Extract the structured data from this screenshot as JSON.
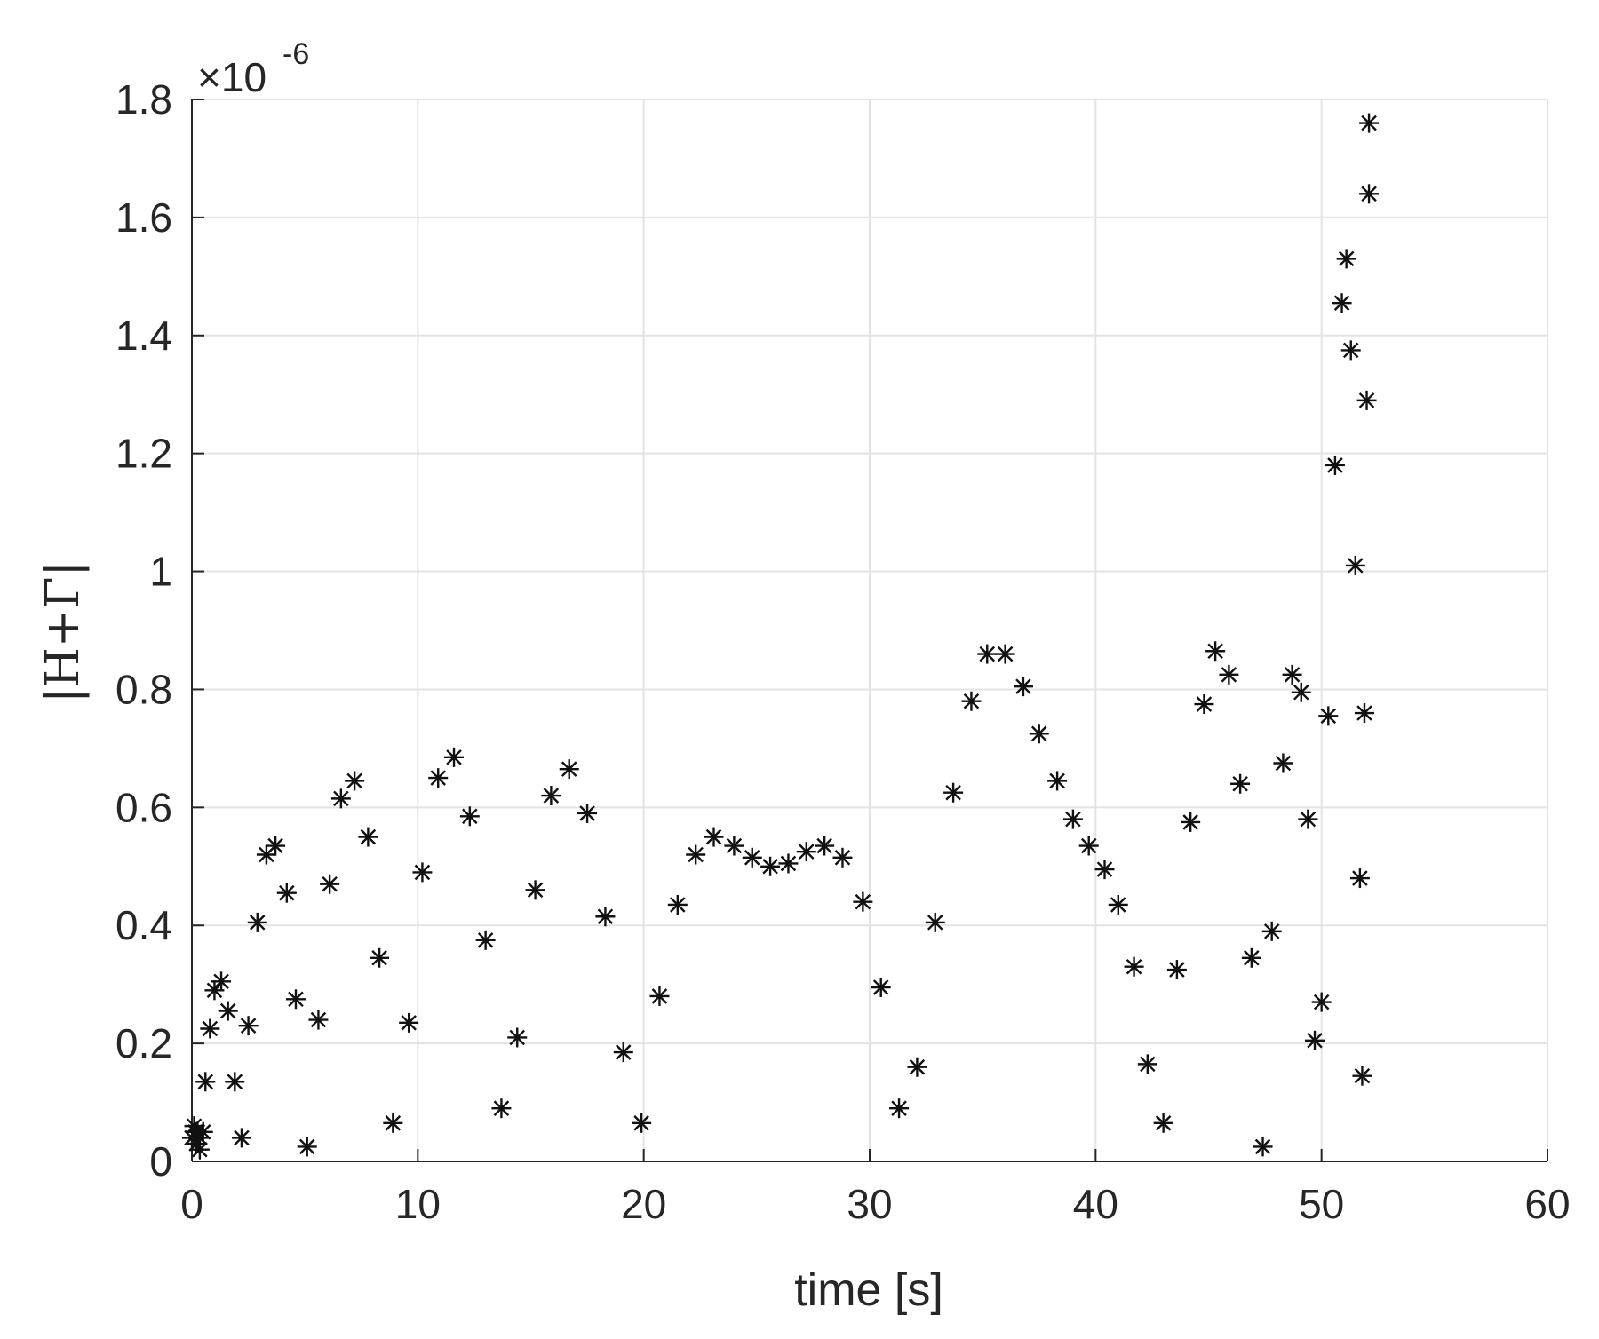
{
  "chart_data": {
    "type": "scatter",
    "marker": "asterisk",
    "marker_color": "#000000",
    "grid": true,
    "xlabel": "time [s]",
    "ylabel": "|H+Γ|",
    "y_exponent_label": {
      "base": "×10",
      "power": "-6"
    },
    "xlim": [
      0,
      60
    ],
    "ylim": [
      0,
      1.8
    ],
    "xticks": [
      0,
      10,
      20,
      30,
      40,
      50,
      60
    ],
    "yticks": [
      0,
      0.2,
      0.4,
      0.6,
      0.8,
      1,
      1.2,
      1.4,
      1.6,
      1.8
    ],
    "xtick_labels": [
      "0",
      "10",
      "20",
      "30",
      "40",
      "50",
      "60"
    ],
    "ytick_labels": [
      "0",
      "0.2",
      "0.4",
      "0.6",
      "0.8",
      "1",
      "1.2",
      "1.4",
      "1.6",
      "1.8"
    ],
    "points": [
      [
        0.0,
        0.04
      ],
      [
        0.1,
        0.06
      ],
      [
        0.15,
        0.05
      ],
      [
        0.2,
        0.03
      ],
      [
        0.25,
        0.05
      ],
      [
        0.35,
        0.02
      ],
      [
        0.5,
        0.05
      ],
      [
        0.35,
        0.04
      ],
      [
        0.6,
        0.135
      ],
      [
        0.8,
        0.225
      ],
      [
        1.0,
        0.29
      ],
      [
        1.3,
        0.305
      ],
      [
        1.6,
        0.255
      ],
      [
        1.9,
        0.135
      ],
      [
        2.2,
        0.04
      ],
      [
        2.5,
        0.23
      ],
      [
        2.9,
        0.405
      ],
      [
        3.3,
        0.52
      ],
      [
        3.7,
        0.535
      ],
      [
        4.2,
        0.455
      ],
      [
        4.6,
        0.275
      ],
      [
        5.1,
        0.025
      ],
      [
        5.6,
        0.24
      ],
      [
        6.1,
        0.47
      ],
      [
        6.6,
        0.615
      ],
      [
        7.2,
        0.645
      ],
      [
        7.8,
        0.55
      ],
      [
        8.3,
        0.345
      ],
      [
        8.9,
        0.065
      ],
      [
        9.6,
        0.235
      ],
      [
        10.2,
        0.49
      ],
      [
        10.9,
        0.65
      ],
      [
        11.6,
        0.685
      ],
      [
        12.3,
        0.585
      ],
      [
        13.0,
        0.375
      ],
      [
        13.7,
        0.09
      ],
      [
        14.4,
        0.21
      ],
      [
        15.2,
        0.46
      ],
      [
        15.9,
        0.62
      ],
      [
        16.7,
        0.665
      ],
      [
        17.5,
        0.59
      ],
      [
        18.3,
        0.415
      ],
      [
        19.1,
        0.185
      ],
      [
        19.9,
        0.065
      ],
      [
        20.7,
        0.28
      ],
      [
        21.5,
        0.435
      ],
      [
        22.3,
        0.52
      ],
      [
        23.1,
        0.55
      ],
      [
        24.0,
        0.535
      ],
      [
        24.8,
        0.515
      ],
      [
        25.6,
        0.5
      ],
      [
        26.4,
        0.505
      ],
      [
        27.2,
        0.525
      ],
      [
        28.0,
        0.535
      ],
      [
        28.8,
        0.515
      ],
      [
        29.7,
        0.44
      ],
      [
        30.5,
        0.295
      ],
      [
        31.3,
        0.09
      ],
      [
        32.1,
        0.16
      ],
      [
        32.9,
        0.405
      ],
      [
        33.7,
        0.625
      ],
      [
        34.5,
        0.78
      ],
      [
        35.2,
        0.86
      ],
      [
        36.0,
        0.86
      ],
      [
        36.8,
        0.805
      ],
      [
        37.5,
        0.725
      ],
      [
        38.3,
        0.645
      ],
      [
        39.0,
        0.58
      ],
      [
        39.7,
        0.535
      ],
      [
        40.4,
        0.495
      ],
      [
        41.0,
        0.435
      ],
      [
        41.7,
        0.33
      ],
      [
        42.3,
        0.165
      ],
      [
        43.0,
        0.065
      ],
      [
        43.6,
        0.325
      ],
      [
        44.2,
        0.575
      ],
      [
        44.8,
        0.775
      ],
      [
        45.3,
        0.865
      ],
      [
        45.9,
        0.825
      ],
      [
        46.4,
        0.64
      ],
      [
        46.9,
        0.345
      ],
      [
        47.4,
        0.025
      ],
      [
        47.8,
        0.39
      ],
      [
        48.3,
        0.675
      ],
      [
        48.7,
        0.825
      ],
      [
        49.1,
        0.795
      ],
      [
        49.4,
        0.58
      ],
      [
        49.7,
        0.205
      ],
      [
        50.0,
        0.27
      ],
      [
        50.3,
        0.755
      ],
      [
        50.6,
        1.18
      ],
      [
        50.9,
        1.455
      ],
      [
        51.1,
        1.53
      ],
      [
        51.3,
        1.375
      ],
      [
        51.5,
        1.01
      ],
      [
        51.7,
        0.48
      ],
      [
        51.8,
        0.145
      ],
      [
        51.9,
        0.76
      ],
      [
        52.0,
        1.29
      ],
      [
        52.1,
        1.64
      ],
      [
        52.1,
        1.76
      ]
    ]
  }
}
